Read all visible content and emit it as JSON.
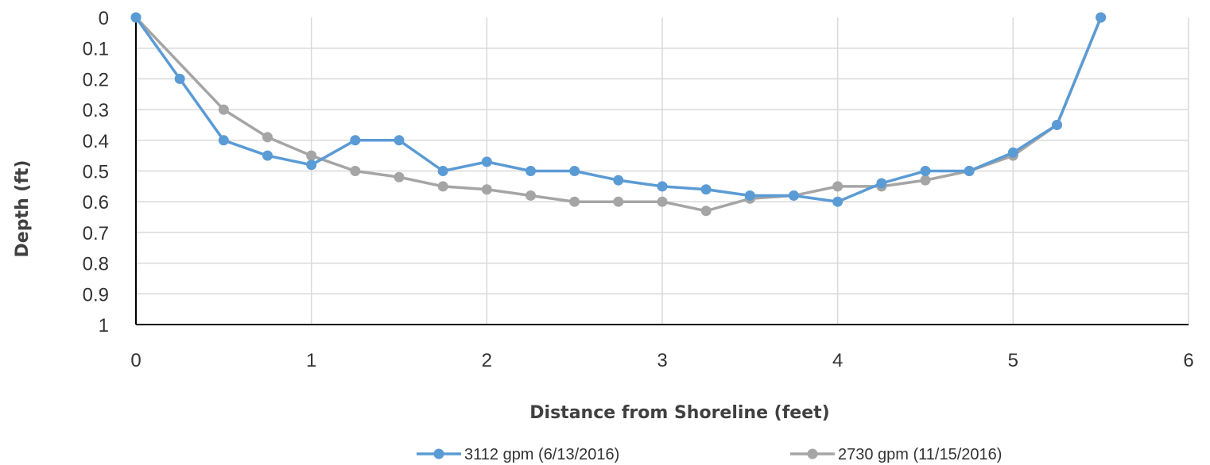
{
  "chart_data": {
    "type": "line",
    "title": "",
    "xlabel": "Distance from Shoreline (feet)",
    "ylabel": "Depth (ft)",
    "xlim": [
      0,
      6
    ],
    "ylim": [
      0,
      1
    ],
    "y_reversed": true,
    "x_ticks": [
      "0",
      "1",
      "2",
      "3",
      "4",
      "5",
      "6"
    ],
    "y_ticks": [
      "0",
      "0.1",
      "0.2",
      "0.3",
      "0.4",
      "0.5",
      "0.6",
      "0.7",
      "0.8",
      "0.9",
      "1"
    ],
    "grid": true,
    "legend_position": "bottom",
    "series": [
      {
        "name": "3112 gpm (6/13/2016)",
        "color": "#5b9bd5",
        "x": [
          0,
          0.25,
          0.5,
          0.75,
          1,
          1.25,
          1.5,
          1.75,
          2,
          2.25,
          2.5,
          2.75,
          3,
          3.25,
          3.5,
          3.75,
          4,
          4.25,
          4.5,
          4.75,
          5,
          5.25,
          5.5
        ],
        "y": [
          0,
          0.2,
          0.4,
          0.45,
          0.48,
          0.4,
          0.4,
          0.5,
          0.47,
          0.5,
          0.5,
          0.53,
          0.55,
          0.56,
          0.58,
          0.58,
          0.6,
          0.54,
          0.5,
          0.5,
          0.44,
          0.35,
          0
        ]
      },
      {
        "name": "2730 gpm (11/15/2016)",
        "color": "#a5a5a5",
        "x": [
          0,
          0.5,
          0.75,
          1,
          1.25,
          1.5,
          1.75,
          2,
          2.25,
          2.5,
          2.75,
          3,
          3.25,
          3.5,
          3.75,
          4,
          4.25,
          4.5,
          4.75,
          5,
          5.25,
          5.5
        ],
        "y": [
          0,
          0.3,
          0.39,
          0.45,
          0.5,
          0.52,
          0.55,
          0.56,
          0.58,
          0.6,
          0.6,
          0.6,
          0.63,
          0.59,
          0.58,
          0.55,
          0.55,
          0.53,
          0.5,
          0.45,
          0.35,
          0
        ]
      }
    ]
  }
}
